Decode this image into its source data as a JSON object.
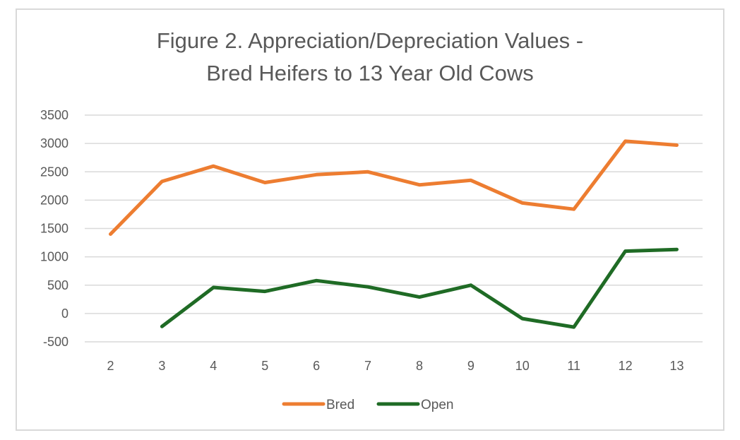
{
  "chart_data": {
    "type": "line",
    "title_lines": [
      "Figure 2. Appreciation/Depreciation Values -",
      "Bred Heifers to 13 Year Old Cows"
    ],
    "xlabel": "",
    "ylabel": "",
    "categories": [
      "2",
      "3",
      "4",
      "5",
      "6",
      "7",
      "8",
      "9",
      "10",
      "11",
      "12",
      "13"
    ],
    "ylim": [
      -500,
      3500
    ],
    "yticks": [
      -500,
      0,
      500,
      1000,
      1500,
      2000,
      2500,
      3000,
      3500
    ],
    "ytick_labels": [
      "-500",
      "0",
      "500",
      "1000",
      "1500",
      "2000",
      "2500",
      "3000",
      "3500"
    ],
    "grid": true,
    "legend_position": "bottom",
    "series": [
      {
        "name": "Bred",
        "color": "#ed7d31",
        "values": [
          1400,
          2330,
          2600,
          2310,
          2450,
          2500,
          2270,
          2350,
          1950,
          1840,
          3040,
          2970
        ]
      },
      {
        "name": "Open",
        "color": "#1f6b25",
        "values": [
          null,
          -230,
          460,
          390,
          580,
          470,
          290,
          500,
          -90,
          -240,
          1100,
          1130
        ]
      }
    ]
  }
}
